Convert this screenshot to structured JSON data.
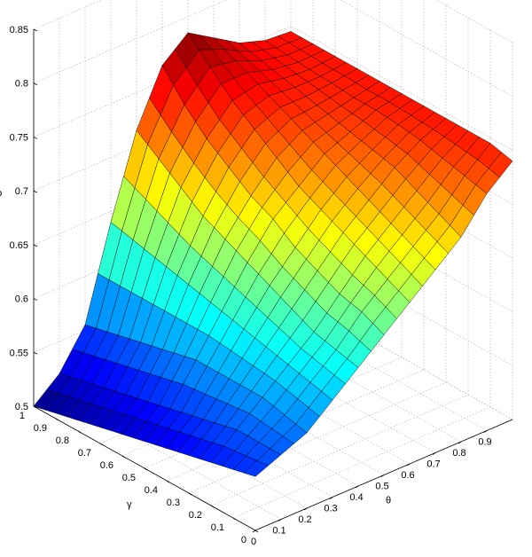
{
  "chart_data": {
    "type": "surface",
    "title": "",
    "xlabel": "θ",
    "ylabel": "γ",
    "zlabel": "ρ",
    "xlim": [
      0,
      1
    ],
    "ylim": [
      0,
      1
    ],
    "zlim": [
      0.5,
      0.85
    ],
    "x_ticks": [
      "0",
      "0.1",
      "0.2",
      "0.3",
      "0.4",
      "0.5",
      "0.6",
      "0.7",
      "0.8",
      "0.9"
    ],
    "y_ticks": [
      "0",
      "0.1",
      "0.2",
      "0.3",
      "0.4",
      "0.5",
      "0.6",
      "0.7",
      "0.8",
      "0.9",
      "1"
    ],
    "z_ticks": [
      "0.5",
      "0.55",
      "0.6",
      "0.65",
      "0.7",
      "0.75",
      "0.8",
      "0.85"
    ],
    "grid": true,
    "colormap": "jet",
    "x": [
      0,
      0.1,
      0.2,
      0.3,
      0.4,
      0.5,
      0.6,
      0.7,
      0.8,
      0.9,
      1
    ],
    "y": [
      0,
      0.1,
      0.2,
      0.3,
      0.4,
      0.5,
      0.6,
      0.7,
      0.8,
      0.9,
      1
    ],
    "z_rows_by_gamma": [
      [
        0.55,
        0.56,
        0.57,
        0.59,
        0.61,
        0.63,
        0.65,
        0.67,
        0.69,
        0.72,
        0.74
      ],
      [
        0.545,
        0.56,
        0.575,
        0.595,
        0.615,
        0.64,
        0.66,
        0.68,
        0.7,
        0.725,
        0.745
      ],
      [
        0.54,
        0.56,
        0.58,
        0.6,
        0.62,
        0.645,
        0.67,
        0.69,
        0.71,
        0.73,
        0.745
      ],
      [
        0.535,
        0.555,
        0.58,
        0.605,
        0.63,
        0.655,
        0.68,
        0.7,
        0.72,
        0.735,
        0.745
      ],
      [
        0.53,
        0.55,
        0.58,
        0.61,
        0.64,
        0.665,
        0.69,
        0.71,
        0.725,
        0.738,
        0.745
      ],
      [
        0.525,
        0.545,
        0.58,
        0.615,
        0.65,
        0.68,
        0.7,
        0.72,
        0.73,
        0.74,
        0.745
      ],
      [
        0.52,
        0.54,
        0.575,
        0.62,
        0.66,
        0.69,
        0.715,
        0.73,
        0.735,
        0.74,
        0.745
      ],
      [
        0.515,
        0.535,
        0.57,
        0.625,
        0.67,
        0.705,
        0.73,
        0.74,
        0.74,
        0.742,
        0.745
      ],
      [
        0.51,
        0.53,
        0.565,
        0.63,
        0.685,
        0.72,
        0.745,
        0.75,
        0.745,
        0.743,
        0.745
      ],
      [
        0.505,
        0.525,
        0.56,
        0.635,
        0.7,
        0.74,
        0.765,
        0.76,
        0.75,
        0.745,
        0.745
      ],
      [
        0.5,
        0.52,
        0.555,
        0.64,
        0.715,
        0.765,
        0.785,
        0.77,
        0.755,
        0.747,
        0.745
      ]
    ]
  }
}
